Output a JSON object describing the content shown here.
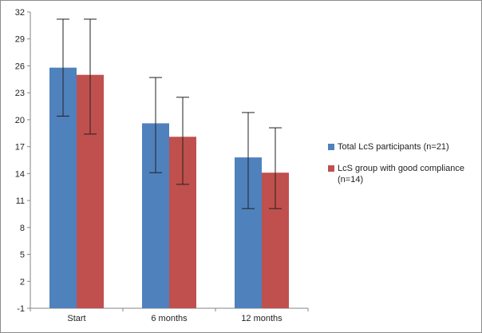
{
  "chart_data": {
    "type": "bar",
    "title": "",
    "xlabel": "",
    "ylabel": "",
    "categories": [
      "Start",
      "6 months",
      "12 months"
    ],
    "ylim": [
      -1,
      32
    ],
    "yticks": [
      "-1",
      "2",
      "5",
      "8",
      "11",
      "14",
      "17",
      "20",
      "23",
      "26",
      "29",
      "32"
    ],
    "grid": false,
    "error_bars": true,
    "legend_position": "right",
    "series": [
      {
        "name": "Total LcS participants (n=21)",
        "color": "#4f81bd",
        "values": [
          25.8,
          19.6,
          15.8
        ],
        "error_low": [
          20.4,
          14.1,
          10.1
        ],
        "error_high": [
          31.2,
          24.7,
          20.8
        ]
      },
      {
        "name": "LcS group with good compliance (n=14)",
        "color": "#c0504d",
        "values": [
          25.0,
          18.1,
          14.1
        ],
        "error_low": [
          18.4,
          12.8,
          10.1
        ],
        "error_high": [
          31.2,
          22.5,
          19.1
        ]
      }
    ]
  }
}
